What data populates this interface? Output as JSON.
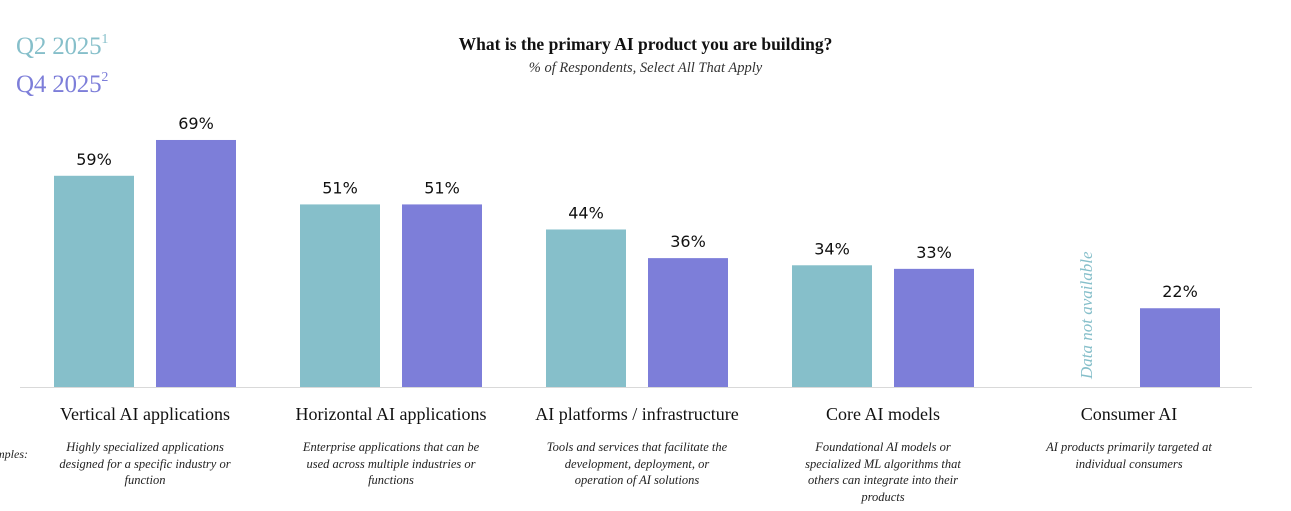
{
  "legend": {
    "q2": {
      "label": "Q2 2025",
      "sup": "1",
      "color": "#86bfca"
    },
    "q4": {
      "label": "Q4 2025",
      "sup": "2",
      "color": "#7d7ed9"
    }
  },
  "examples_label": "mples:",
  "missing_note": "Data not available",
  "chart_data": {
    "type": "bar",
    "title": "What is the primary AI product you are building?",
    "subtitle": "% of Respondents, Select All That Apply",
    "categories": [
      "Vertical AI applications",
      "Horizontal AI applications",
      "AI platforms / infrastructure",
      "Core AI models",
      "Consumer AI"
    ],
    "descriptions": [
      "Highly specialized applications designed for a specific industry or function",
      "Enterprise applications that can be used across multiple industries or functions",
      "Tools and services that facilitate the development, deployment, or operation of AI solutions",
      "Foundational AI models or specialized ML algorithms that others can integrate into their products",
      "AI products primarily targeted at individual consumers"
    ],
    "series": [
      {
        "name": "Q2 2025",
        "values": [
          59,
          51,
          44,
          34,
          null
        ],
        "labels": [
          "59%",
          "51%",
          "44%",
          "34%",
          ""
        ]
      },
      {
        "name": "Q4 2025",
        "values": [
          69,
          51,
          36,
          33,
          22
        ],
        "labels": [
          "69%",
          "51%",
          "36%",
          "33%",
          "22%"
        ]
      }
    ],
    "ylim": [
      0,
      100
    ],
    "xlabel": "",
    "ylabel": "",
    "grid": false,
    "legend_position": "top-left"
  }
}
